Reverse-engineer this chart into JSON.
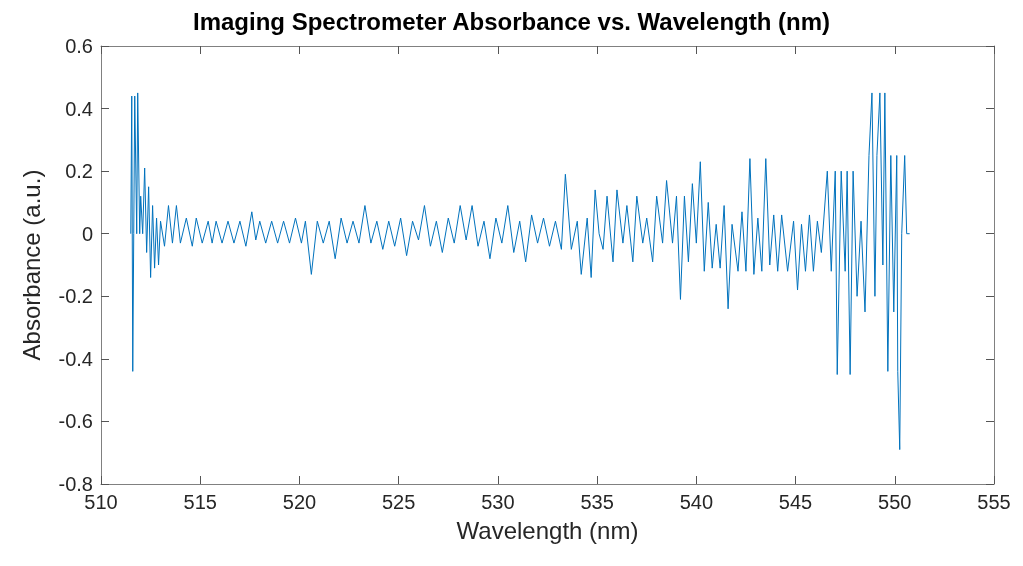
{
  "chart_data": {
    "type": "line",
    "title": "Imaging Spectrometer Absorbance vs. Wavelength (nm)",
    "xlabel": "Wavelength (nm)",
    "ylabel": "Absorbance (a.u.)",
    "xlim": [
      510,
      555
    ],
    "xticks": [
      510,
      515,
      520,
      525,
      530,
      535,
      540,
      545,
      550,
      555
    ],
    "ylim": [
      -0.8,
      0.6
    ],
    "yticks": [
      -0.8,
      -0.6,
      -0.4,
      -0.2,
      0,
      0.2,
      0.4,
      0.6
    ],
    "series": [
      {
        "color": "#0072bd",
        "x": [
          511.5,
          511.55,
          511.6,
          511.65,
          511.7,
          511.8,
          511.85,
          511.95,
          512.0,
          512.1,
          512.2,
          512.3,
          512.4,
          512.5,
          512.6,
          512.7,
          512.8,
          512.9,
          513.0,
          513.2,
          513.4,
          513.6,
          513.8,
          514.0,
          514.3,
          514.6,
          514.8,
          515.1,
          515.4,
          515.6,
          515.8,
          516.1,
          516.4,
          516.7,
          517.0,
          517.3,
          517.6,
          517.8,
          518.0,
          518.3,
          518.6,
          518.9,
          519.2,
          519.5,
          519.8,
          520.1,
          520.3,
          520.6,
          520.9,
          521.2,
          521.5,
          521.8,
          522.1,
          522.4,
          522.7,
          523.0,
          523.3,
          523.6,
          523.9,
          524.2,
          524.5,
          524.8,
          525.1,
          525.4,
          525.7,
          526.0,
          526.3,
          526.6,
          526.9,
          527.2,
          527.5,
          527.8,
          528.1,
          528.4,
          528.7,
          529.0,
          529.3,
          529.6,
          529.9,
          530.2,
          530.5,
          530.8,
          531.1,
          531.4,
          531.7,
          532.0,
          532.3,
          532.6,
          532.9,
          533.2,
          533.4,
          533.7,
          534.0,
          534.2,
          534.5,
          534.7,
          534.9,
          535.1,
          535.3,
          535.5,
          535.8,
          536.0,
          536.3,
          536.5,
          536.8,
          537.0,
          537.3,
          537.5,
          537.8,
          538.0,
          538.3,
          538.5,
          538.8,
          539.0,
          539.2,
          539.4,
          539.6,
          539.8,
          540.0,
          540.2,
          540.4,
          540.6,
          540.8,
          541.0,
          541.2,
          541.4,
          541.6,
          541.8,
          542.1,
          542.3,
          542.5,
          542.7,
          542.9,
          543.1,
          543.3,
          543.5,
          543.7,
          543.9,
          544.1,
          544.3,
          544.6,
          544.9,
          545.1,
          545.3,
          545.5,
          545.7,
          545.9,
          546.1,
          546.3,
          546.6,
          546.8,
          547.0,
          547.1,
          547.3,
          547.5,
          547.6,
          547.75,
          547.9,
          548.1,
          548.3,
          548.5,
          548.7,
          548.85,
          549.0,
          549.1,
          549.25,
          549.4,
          549.5,
          549.65,
          549.8,
          549.95,
          550.1,
          550.15,
          550.25,
          550.35,
          550.5,
          550.6,
          550.75
        ],
        "values": [
          0,
          0.44,
          -0.44,
          0,
          0.44,
          0,
          0.45,
          0,
          0.12,
          0,
          0.21,
          -0.06,
          0.15,
          -0.14,
          0.09,
          -0.11,
          0.05,
          -0.1,
          0.04,
          -0.04,
          0.09,
          -0.03,
          0.09,
          -0.03,
          0.05,
          -0.04,
          0.05,
          -0.03,
          0.04,
          -0.03,
          0.04,
          -0.03,
          0.04,
          -0.03,
          0.04,
          -0.04,
          0.07,
          -0.02,
          0.04,
          -0.03,
          0.04,
          -0.03,
          0.04,
          -0.03,
          0.05,
          -0.03,
          0.04,
          -0.13,
          0.04,
          -0.03,
          0.04,
          -0.08,
          0.05,
          -0.03,
          0.04,
          -0.03,
          0.09,
          -0.03,
          0.04,
          -0.05,
          0.04,
          -0.04,
          0.05,
          -0.07,
          0.04,
          -0.02,
          0.09,
          -0.04,
          0.04,
          -0.06,
          0.05,
          -0.03,
          0.09,
          -0.02,
          0.09,
          -0.04,
          0.04,
          -0.08,
          0.05,
          -0.03,
          0.09,
          -0.06,
          0.04,
          -0.09,
          0.06,
          -0.03,
          0.05,
          -0.04,
          0.04,
          -0.05,
          0.19,
          -0.05,
          0.04,
          -0.13,
          0.05,
          -0.14,
          0.14,
          0,
          -0.05,
          0.12,
          -0.09,
          0.14,
          -0.03,
          0.09,
          -0.09,
          0.12,
          -0.03,
          0.05,
          -0.09,
          0.12,
          -0.03,
          0.17,
          -0.03,
          0.12,
          -0.21,
          0.12,
          -0.09,
          0.16,
          -0.03,
          0.23,
          -0.12,
          0.1,
          -0.11,
          0.03,
          -0.11,
          0.09,
          -0.24,
          0.03,
          -0.12,
          0.07,
          -0.12,
          0.24,
          -0.13,
          0.05,
          -0.12,
          0.24,
          -0.1,
          0.06,
          -0.12,
          0.06,
          -0.12,
          0.04,
          -0.18,
          0.03,
          -0.12,
          0.06,
          -0.12,
          0.04,
          -0.06,
          0.2,
          -0.12,
          0.2,
          -0.45,
          0.2,
          -0.12,
          0.2,
          -0.45,
          0.2,
          -0.2,
          0.04,
          -0.25,
          0.25,
          0.45,
          -0.2,
          0.25,
          0.45,
          -0.1,
          0.45,
          -0.44,
          0.25,
          -0.25,
          0.25,
          -0.44,
          -0.69,
          0,
          0.25,
          0,
          0
        ]
      }
    ]
  }
}
